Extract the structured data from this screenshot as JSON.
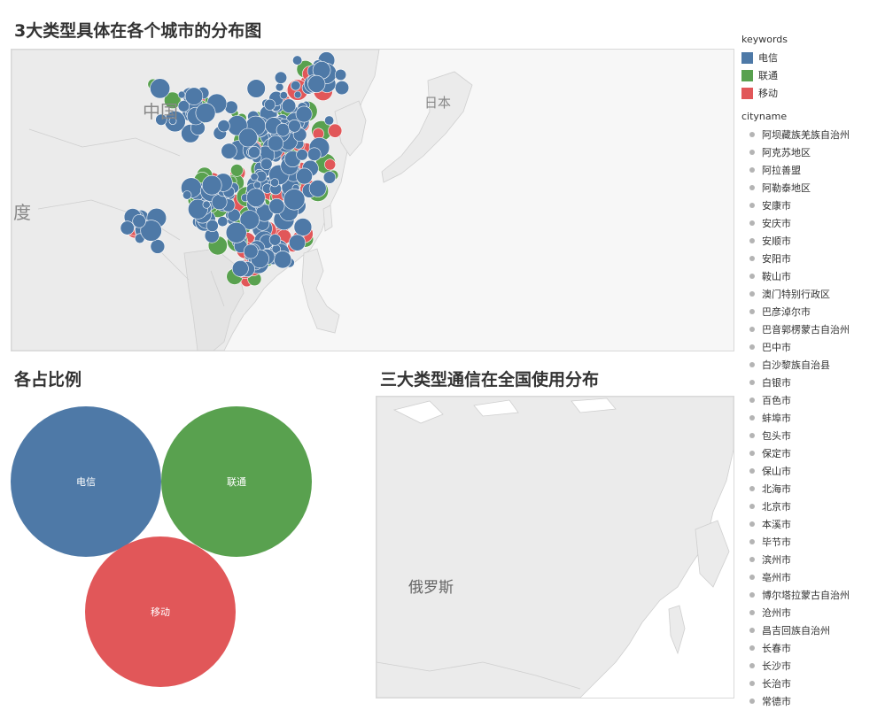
{
  "titles": {
    "map_main": "3大类型具体在各个城市的分布图",
    "bubbles": "各占比例",
    "map_russia": "三大类型通信在全国使用分布"
  },
  "map_labels": {
    "china": "中国",
    "japan": "日本",
    "india": "度",
    "russia": "俄罗斯"
  },
  "legend": {
    "keywords_title": "keywords",
    "keywords": [
      {
        "label": "电信",
        "color": "#4e79a7"
      },
      {
        "label": "联通",
        "color": "#59a14f"
      },
      {
        "label": "移动",
        "color": "#e15759"
      }
    ],
    "cityname_title": "cityname",
    "cities": [
      "阿坝藏族羌族自治州",
      "阿克苏地区",
      "阿拉善盟",
      "阿勒泰地区",
      "安康市",
      "安庆市",
      "安顺市",
      "安阳市",
      "鞍山市",
      "澳门特别行政区",
      "巴彦淖尔市",
      "巴音郭楞蒙古自治州",
      "巴中市",
      "白沙黎族自治县",
      "白银市",
      "百色市",
      "蚌埠市",
      "包头市",
      "保定市",
      "保山市",
      "北海市",
      "北京市",
      "本溪市",
      "毕节市",
      "滨州市",
      "亳州市",
      "博尔塔拉蒙古自治州",
      "沧州市",
      "昌吉回族自治州",
      "长春市",
      "长沙市",
      "长治市",
      "常德市"
    ]
  },
  "chart_data": [
    {
      "type": "scatter",
      "title": "3大类型具体在各个城市的分布图",
      "note_series": [
        "电信",
        "联通",
        "移动"
      ]
    },
    {
      "type": "bubble",
      "title": "各占比例",
      "categories": [
        "电信",
        "联通",
        "移动"
      ],
      "colors": [
        "#4e79a7",
        "#59a14f",
        "#e15759"
      ]
    },
    {
      "type": "map",
      "title": "三大类型通信在全国使用分布"
    }
  ]
}
